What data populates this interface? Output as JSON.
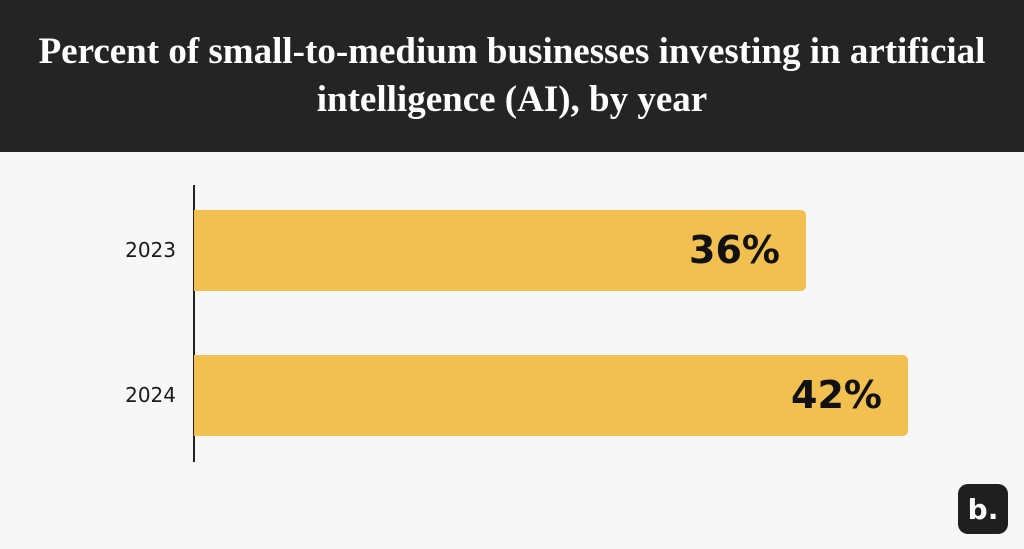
{
  "chart_data": {
    "type": "bar",
    "orientation": "horizontal",
    "title": "Percent of small-to-medium businesses investing in artificial intelligence (AI), by year",
    "categories": [
      "2023",
      "2024"
    ],
    "values": [
      36,
      42
    ],
    "value_labels": [
      "36%",
      "42%"
    ],
    "color": "#f1c050"
  },
  "brand_mark": "b."
}
